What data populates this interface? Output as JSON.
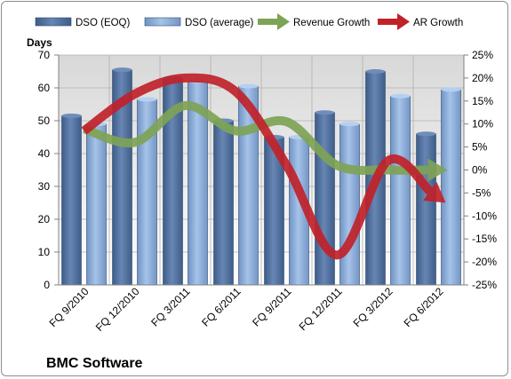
{
  "chart_data": {
    "type": "bar",
    "title": "BMC Software",
    "ylabel": "Days",
    "categories": [
      "FQ 9/2010",
      "FQ 12/2010",
      "FQ 3/2011",
      "FQ 6/2011",
      "FQ 9/2011",
      "FQ 12/2011",
      "FQ 3/2012",
      "FQ 6/2012"
    ],
    "ylim": [
      0,
      70
    ],
    "yticks": [
      "0",
      "10",
      "20",
      "30",
      "40",
      "50",
      "60",
      "70"
    ],
    "y2lim": [
      -25,
      25
    ],
    "y2ticks": [
      "-25%",
      "-20%",
      "-15%",
      "-10%",
      "-5%",
      "0%",
      "5%",
      "10%",
      "15%",
      "20%",
      "25%"
    ],
    "grid": true,
    "legend_position": "top",
    "series": [
      {
        "name": "DSO (EOQ)",
        "kind": "bar",
        "axis": "left",
        "color": "#4f6f9f",
        "values": [
          51.5,
          65.5,
          63,
          50,
          45,
          52.5,
          65,
          46
        ]
      },
      {
        "name": "DSO (average)",
        "kind": "bar",
        "axis": "left",
        "color": "#8cb0de",
        "values": [
          49,
          56.5,
          62,
          60.5,
          45,
          49,
          57.5,
          59.5
        ]
      },
      {
        "name": "Revenue Growth",
        "kind": "arrow",
        "axis": "right",
        "color": "#7ea356",
        "values": [
          9,
          6,
          14,
          8.5,
          10.5,
          1,
          0,
          0
        ]
      },
      {
        "name": "AR Growth",
        "kind": "arrow",
        "axis": "right",
        "color": "#c0222a",
        "values": [
          8.5,
          16.5,
          20,
          17,
          1,
          -18.5,
          2,
          -6
        ]
      }
    ]
  }
}
